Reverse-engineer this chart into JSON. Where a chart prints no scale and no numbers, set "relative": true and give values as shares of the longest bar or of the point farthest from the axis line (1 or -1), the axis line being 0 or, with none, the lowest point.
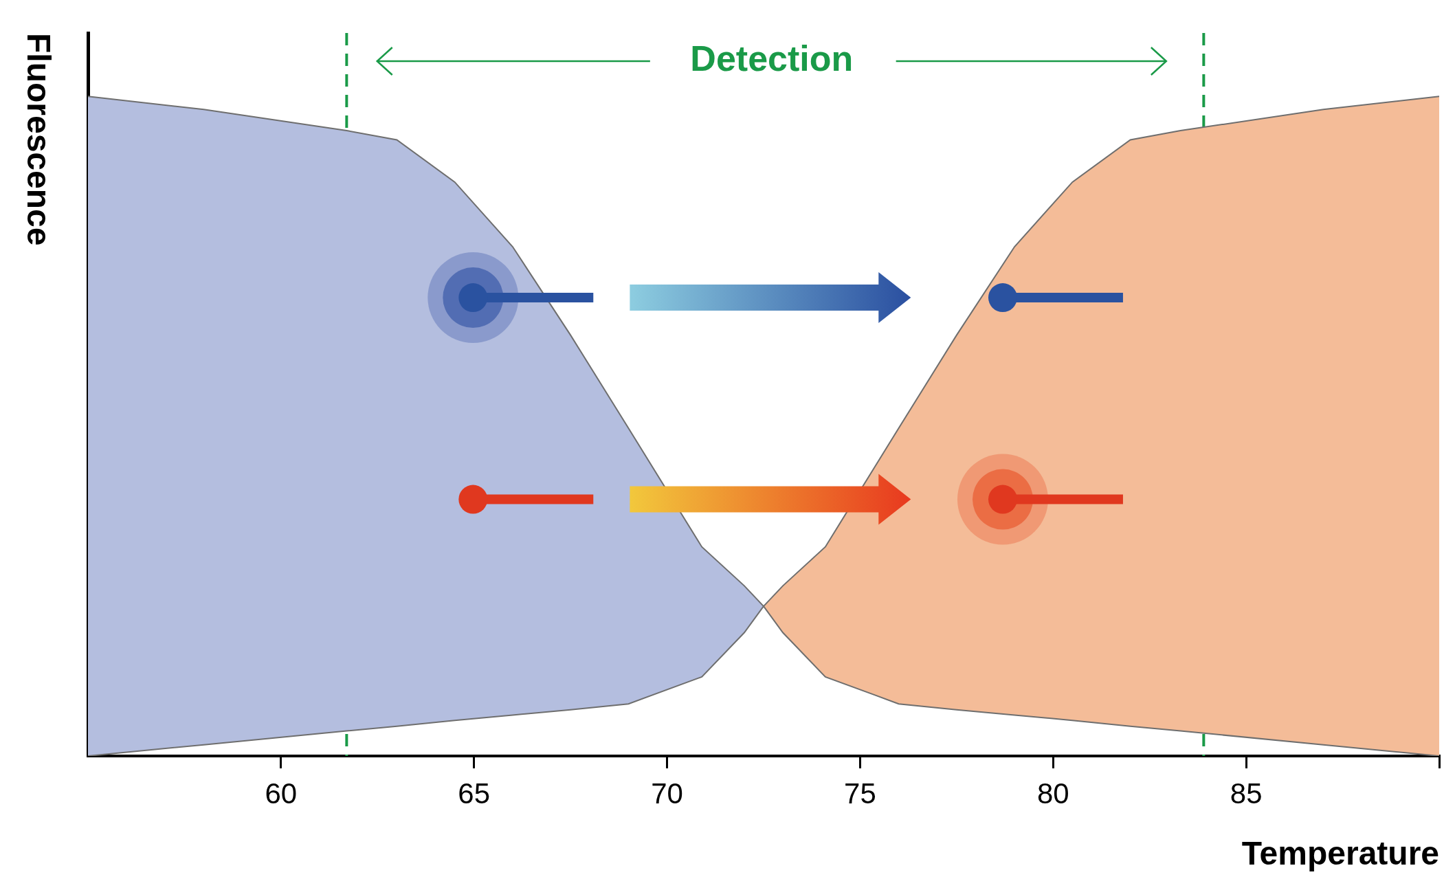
{
  "chart_data": {
    "type": "area",
    "relative": true,
    "xlabel": "Temperature",
    "ylabel": "Fluorescence",
    "xlim": [
      55,
      90
    ],
    "xticks": [
      60,
      65,
      70,
      75,
      80,
      85,
      {
        "value": 90,
        "label": null
      }
    ],
    "annotations": [
      "Detection"
    ],
    "ref_lines": [
      {
        "axis": "x",
        "value": 61.7,
        "color": "#1a9a48",
        "line_style": "dashed"
      },
      {
        "axis": "x",
        "value": 83.9,
        "color": "#1a9a48",
        "line_style": "dashed"
      }
    ],
    "series": [
      {
        "type": "line",
        "color": "#6e6e6e",
        "x": [
          55,
          58,
          61.7,
          63,
          64.5,
          66,
          67.5,
          69,
          70.9,
          72,
          72.5
        ],
        "values": [
          0,
          0.017,
          0.038,
          0.045,
          0.054,
          0.062,
          0.07,
          0.079,
          0.12,
          0.187,
          0.227
        ]
      },
      {
        "color": "#b4bedf",
        "x": [
          55,
          58,
          61.7,
          63,
          64.5,
          66,
          67.5,
          69,
          70.9,
          72,
          72.5
        ],
        "values": [
          1.0,
          0.98,
          0.948,
          0.934,
          0.87,
          0.772,
          0.638,
          0.497,
          0.317,
          0.258,
          0.227
        ]
      },
      {
        "type": "line",
        "color": "#6e6e6e",
        "x": [
          72.5,
          73,
          74.1,
          76,
          77.5,
          79,
          80.5,
          82,
          83.3,
          87,
          90
        ],
        "values": [
          0.227,
          0.187,
          0.12,
          0.079,
          0.07,
          0.062,
          0.054,
          0.045,
          0.038,
          0.017,
          0
        ]
      },
      {
        "color": "#f4bc98",
        "x": [
          72.5,
          73,
          74.1,
          76,
          77.5,
          79,
          80.5,
          82,
          83.3,
          87,
          90
        ],
        "values": [
          0.227,
          0.258,
          0.317,
          0.497,
          0.638,
          0.772,
          0.87,
          0.934,
          0.948,
          0.98,
          1.0
        ]
      }
    ]
  }
}
